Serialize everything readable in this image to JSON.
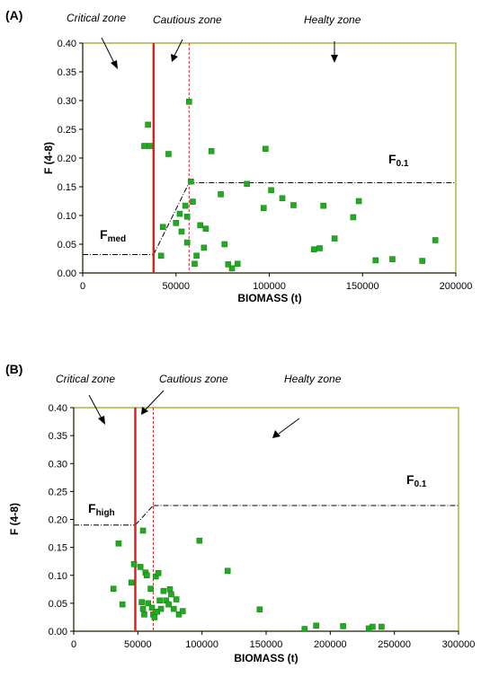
{
  "chart_data": [
    {
      "type": "scatter",
      "panel_label": "(A)",
      "xlabel": "BIOMASS (t)",
      "ylabel": "F (4-8)",
      "xlim": [
        0,
        200000
      ],
      "ylim": [
        0,
        0.4
      ],
      "x_ticks": [
        "0",
        "50000",
        "100000",
        "150000",
        "200000"
      ],
      "y_ticks": [
        "0.00",
        "0.05",
        "0.10",
        "0.15",
        "0.20",
        "0.25",
        "0.30",
        "0.35",
        "0.40"
      ],
      "grid": false,
      "colors": {
        "points": "#22aa22",
        "limit_line": "#dd2222",
        "frame": "#99aa22"
      },
      "zones": [
        "Critical zone",
        "Cautious zone",
        "Healty zone"
      ],
      "reference_labels": {
        "low": {
          "main": "F",
          "sub": "med"
        },
        "high": {
          "main": "F",
          "sub": "0.1"
        }
      },
      "limit_biomass": 38000,
      "cautious_biomass": 57000,
      "hcr": {
        "low_f": 0.032,
        "high_f": 0.157,
        "x1": 38000,
        "x2": 57000
      },
      "x": [
        33000,
        35000,
        36000,
        57000,
        46000,
        43000,
        52000,
        55000,
        56000,
        58000,
        59000,
        63000,
        66000,
        69000,
        65000,
        74000,
        76000,
        80000,
        88000,
        98000,
        97000,
        101000,
        107000,
        113000,
        124000,
        127000,
        129000,
        135000,
        145000,
        148000,
        157000,
        166000,
        182000,
        189000,
        42000,
        50000,
        53000,
        56000,
        60000,
        61000,
        78000,
        83000
      ],
      "y": [
        0.221,
        0.258,
        0.221,
        0.298,
        0.207,
        0.08,
        0.103,
        0.117,
        0.098,
        0.159,
        0.124,
        0.083,
        0.077,
        0.212,
        0.044,
        0.137,
        0.05,
        0.008,
        0.155,
        0.216,
        0.113,
        0.144,
        0.13,
        0.118,
        0.041,
        0.043,
        0.117,
        0.06,
        0.097,
        0.125,
        0.022,
        0.024,
        0.021,
        0.057,
        0.03,
        0.087,
        0.072,
        0.053,
        0.016,
        0.03,
        0.015,
        0.016
      ]
    },
    {
      "type": "scatter",
      "panel_label": "(B)",
      "xlabel": "BIOMASS (t)",
      "ylabel": "F (4-8)",
      "xlim": [
        0,
        300000
      ],
      "ylim": [
        0,
        0.4
      ],
      "x_ticks": [
        "0",
        "50000",
        "100000",
        "150000",
        "200000",
        "250000",
        "300000"
      ],
      "y_ticks": [
        "0.00",
        "0.05",
        "0.10",
        "0.15",
        "0.20",
        "0.25",
        "0.30",
        "0.35",
        "0.40"
      ],
      "grid": false,
      "colors": {
        "points": "#22aa22",
        "limit_line": "#dd2222",
        "frame": "#99aa22"
      },
      "zones": [
        "Critical zone",
        "Cautious zone",
        "Healty zone"
      ],
      "reference_labels": {
        "low": {
          "main": "F",
          "sub": "high"
        },
        "high": {
          "main": "F",
          "sub": "0.1"
        }
      },
      "limit_biomass": 48000,
      "cautious_biomass": 62000,
      "hcr": {
        "low_f": 0.19,
        "high_f": 0.225,
        "x1": 48000,
        "x2": 62000
      },
      "x": [
        31000,
        35000,
        38000,
        45000,
        47000,
        52000,
        53000,
        54000,
        55000,
        56000,
        57000,
        58000,
        60000,
        61000,
        62000,
        63000,
        64000,
        65000,
        66000,
        67000,
        68000,
        70000,
        72000,
        74000,
        75000,
        76000,
        78000,
        80000,
        82000,
        85000,
        54000,
        98000,
        120000,
        145000,
        180000,
        189000,
        210000,
        230000,
        233000,
        240000
      ],
      "y": [
        0.076,
        0.157,
        0.048,
        0.087,
        0.12,
        0.115,
        0.052,
        0.04,
        0.03,
        0.105,
        0.1,
        0.05,
        0.076,
        0.042,
        0.03,
        0.025,
        0.098,
        0.035,
        0.104,
        0.055,
        0.04,
        0.072,
        0.055,
        0.048,
        0.075,
        0.066,
        0.04,
        0.057,
        0.03,
        0.036,
        0.18,
        0.162,
        0.108,
        0.039,
        0.004,
        0.01,
        0.009,
        0.005,
        0.008,
        0.008
      ]
    }
  ]
}
